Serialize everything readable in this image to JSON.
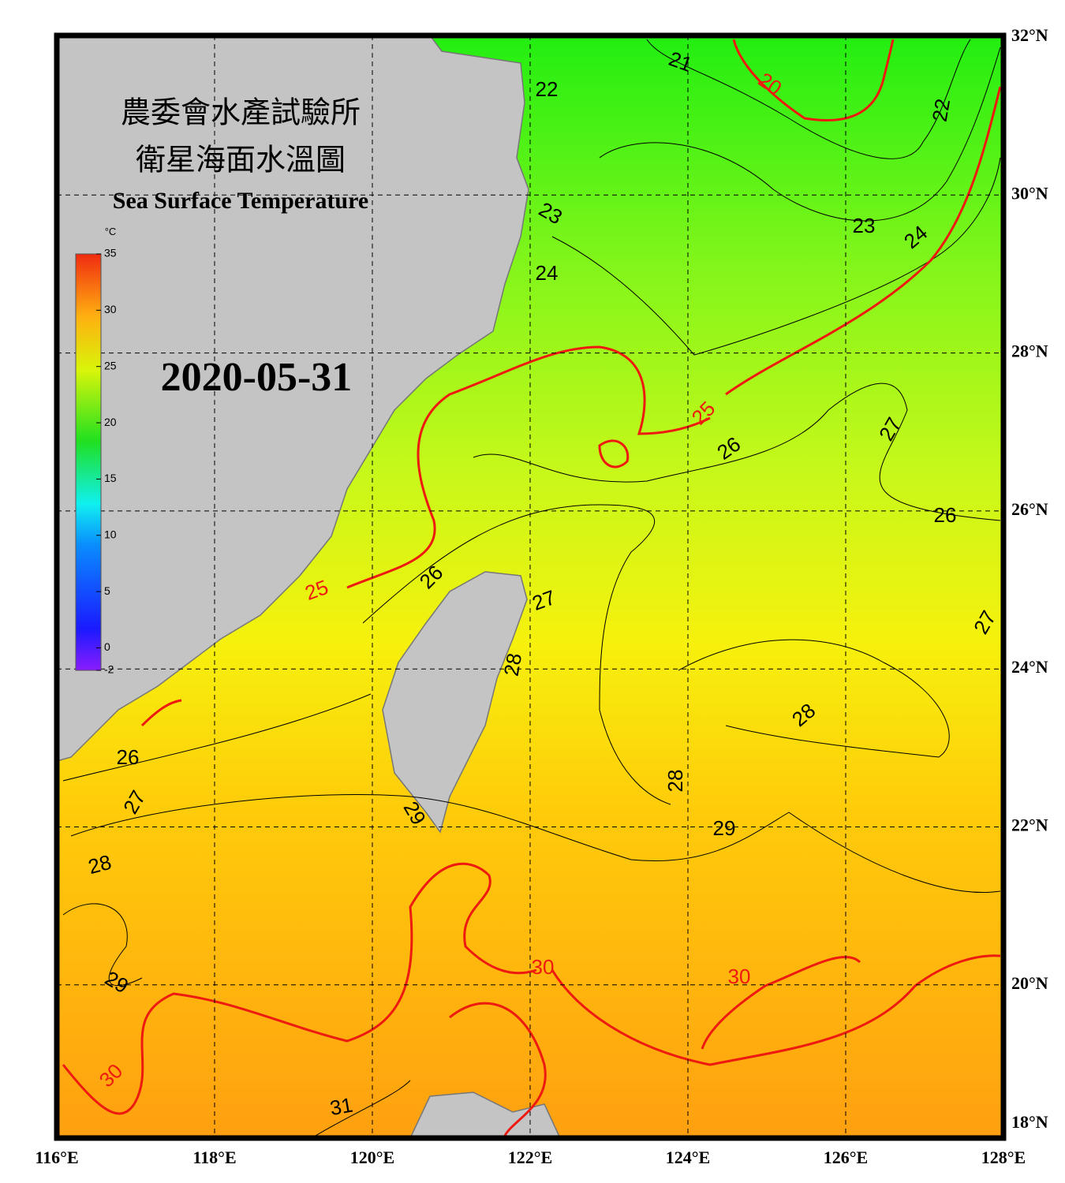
{
  "title": {
    "line1": "農委會水產試驗所",
    "line2": "衛星海面水溫圖",
    "line3": "Sea Surface Temperature"
  },
  "date": "2020-05-31",
  "colorbar": {
    "unit": "°C",
    "range": [
      -2,
      35
    ],
    "ticks": [
      35,
      30,
      25,
      20,
      15,
      10,
      5,
      0,
      -2
    ]
  },
  "longitude_labels": [
    "116°E",
    "118°E",
    "120°E",
    "122°E",
    "124°E",
    "126°E",
    "128°E"
  ],
  "latitude_labels": [
    "32°N",
    "30°N",
    "28°N",
    "26°N",
    "24°N",
    "22°N",
    "20°N",
    "18°N"
  ],
  "contour_labels": [
    "21",
    "20",
    "22",
    "22",
    "23",
    "23",
    "24",
    "24",
    "25",
    "26",
    "27",
    "26",
    "25",
    "26",
    "27",
    "27",
    "28",
    "28",
    "28",
    "26",
    "27",
    "29",
    "29",
    "28",
    "29",
    "30",
    "30",
    "30",
    "31"
  ]
}
